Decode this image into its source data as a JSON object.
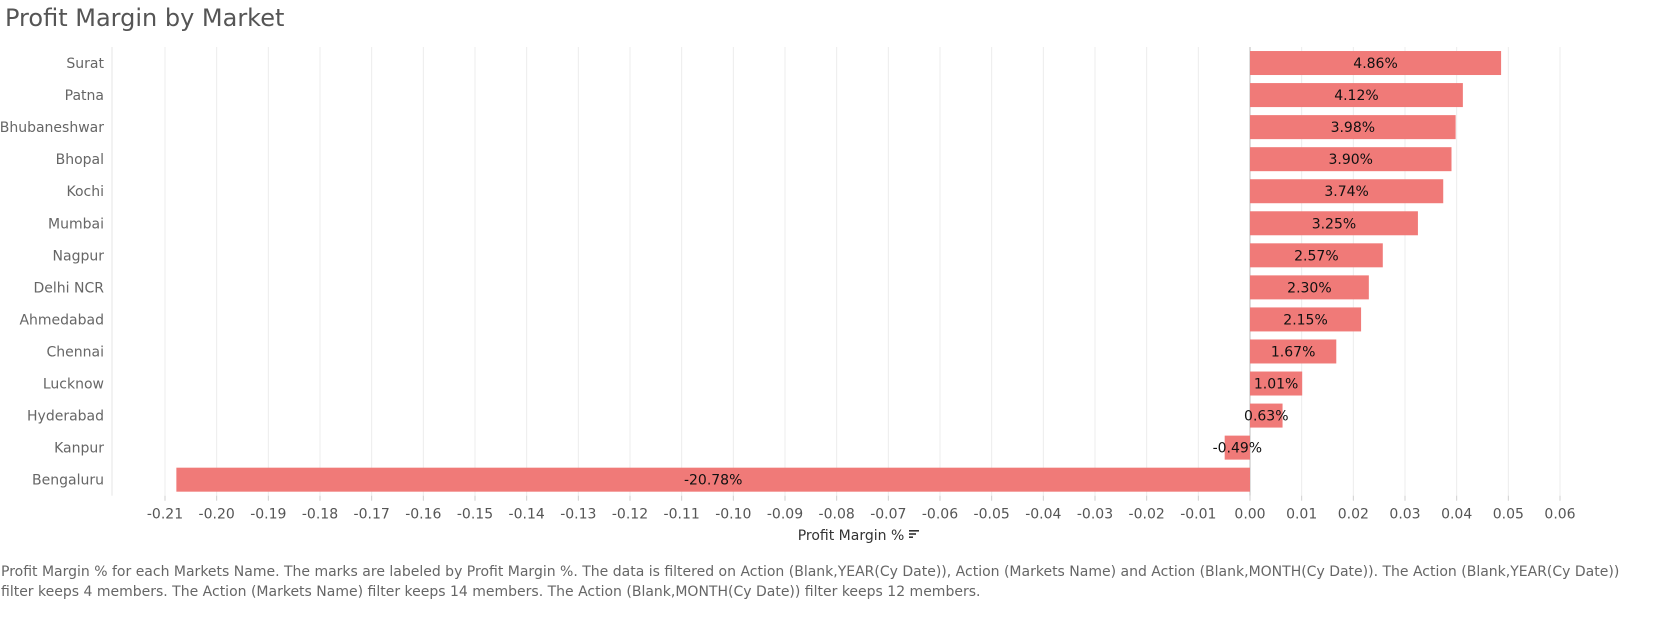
{
  "chart_data": {
    "type": "bar",
    "orientation": "horizontal",
    "title": "Profit Margin by Market",
    "xlabel": "Profit Margin %",
    "ylabel": "",
    "categories": [
      "Surat",
      "Patna",
      "Bhubaneshwar",
      "Bhopal",
      "Kochi",
      "Mumbai",
      "Nagpur",
      "Delhi NCR",
      "Ahmedabad",
      "Chennai",
      "Lucknow",
      "Hyderabad",
      "Kanpur",
      "Bengaluru"
    ],
    "values": [
      0.0486,
      0.0412,
      0.0398,
      0.039,
      0.0374,
      0.0325,
      0.0257,
      0.023,
      0.0215,
      0.0167,
      0.0101,
      0.0063,
      -0.0049,
      -0.2078
    ],
    "data_labels": [
      "4.86%",
      "4.12%",
      "3.98%",
      "3.90%",
      "3.74%",
      "3.25%",
      "2.57%",
      "2.30%",
      "2.15%",
      "1.67%",
      "1.01%",
      "0.63%",
      "-0.49%",
      "-20.78%"
    ],
    "xlim": [
      -0.22,
      0.06
    ],
    "xticks": [
      "-0.21",
      "-0.20",
      "-0.19",
      "-0.18",
      "-0.17",
      "-0.16",
      "-0.15",
      "-0.14",
      "-0.13",
      "-0.12",
      "-0.11",
      "-0.10",
      "-0.09",
      "-0.08",
      "-0.07",
      "-0.06",
      "-0.05",
      "-0.04",
      "-0.03",
      "-0.02",
      "-0.01",
      "0.00",
      "0.01",
      "0.02",
      "0.03",
      "0.04",
      "0.05",
      "0.06"
    ],
    "grid": true,
    "bar_color": "#f07a78",
    "sorted": "descending"
  },
  "caption": "Profit Margin % for each Markets Name.  The marks are labeled by Profit Margin %. The data is filtered on Action (Blank,YEAR(Cy Date)), Action (Markets Name) and Action (Blank,MONTH(Cy Date)). The Action (Blank,YEAR(Cy Date)) filter keeps 4 members. The Action (Markets Name) filter keeps 14 members. The Action (Blank,MONTH(Cy Date)) filter keeps 12 members.",
  "icons": {
    "sort": "sort-descending-icon"
  }
}
